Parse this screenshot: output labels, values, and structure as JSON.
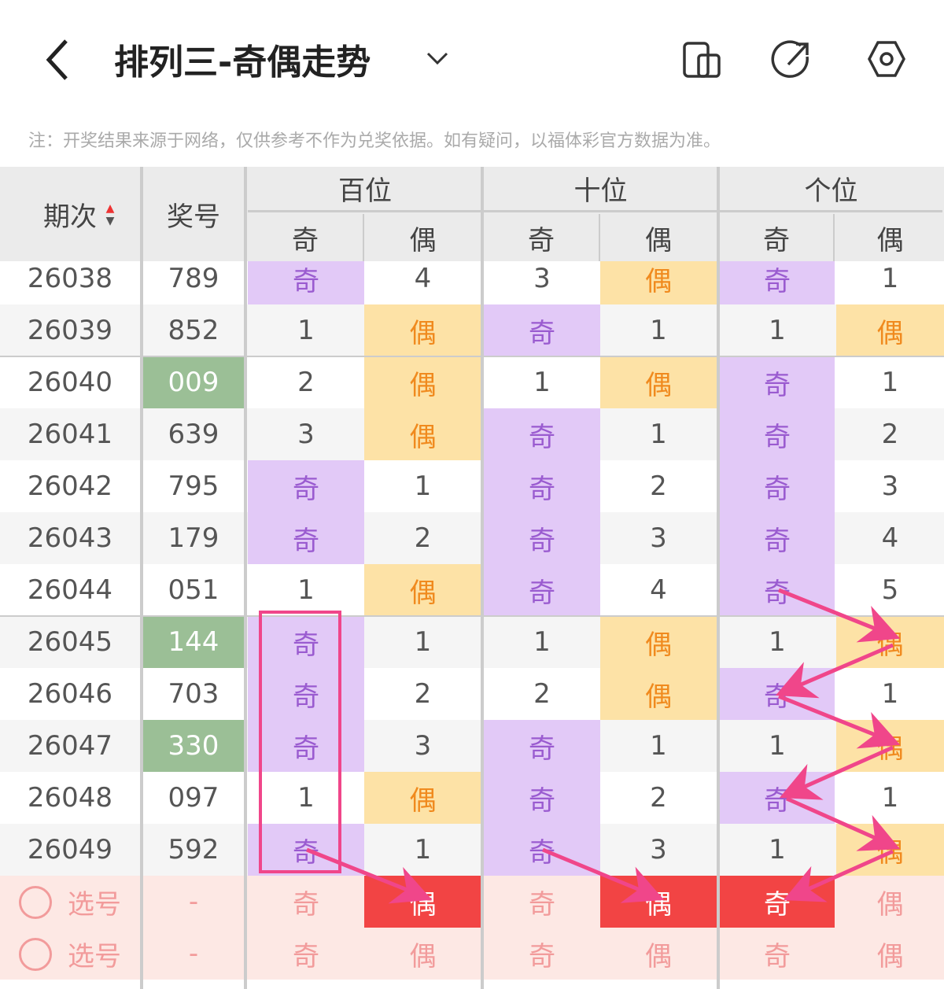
{
  "header": {
    "title": "排列三-奇偶走势"
  },
  "note": "注：开奖结果来源于网络，仅供参考不作为兑奖依据。如有疑问，以福体彩官方数据为准。",
  "table": {
    "columns": [
      "期次",
      "奖号"
    ],
    "groups": [
      "百位",
      "十位",
      "个位"
    ],
    "sub": [
      "奇",
      "偶",
      "奇",
      "偶",
      "奇",
      "偶"
    ],
    "rows": [
      {
        "issue": "26038",
        "number": "789",
        "cells": [
          "奇",
          "4",
          "3",
          "偶",
          "奇",
          "1"
        ]
      },
      {
        "issue": "26039",
        "number": "852",
        "cells": [
          "1",
          "偶",
          "奇",
          "1",
          "1",
          "偶"
        ]
      },
      {
        "issue": "26040",
        "number": "009",
        "number_highlight": true,
        "cells": [
          "2",
          "偶",
          "1",
          "偶",
          "奇",
          "1"
        ]
      },
      {
        "issue": "26041",
        "number": "639",
        "cells": [
          "3",
          "偶",
          "奇",
          "1",
          "奇",
          "2"
        ]
      },
      {
        "issue": "26042",
        "number": "795",
        "cells": [
          "奇",
          "1",
          "奇",
          "2",
          "奇",
          "3"
        ]
      },
      {
        "issue": "26043",
        "number": "179",
        "cells": [
          "奇",
          "2",
          "奇",
          "3",
          "奇",
          "4"
        ]
      },
      {
        "issue": "26044",
        "number": "051",
        "cells": [
          "1",
          "偶",
          "奇",
          "4",
          "奇",
          "5"
        ]
      },
      {
        "issue": "26045",
        "number": "144",
        "number_highlight": true,
        "cells": [
          "奇",
          "1",
          "1",
          "偶",
          "1",
          "偶"
        ]
      },
      {
        "issue": "26046",
        "number": "703",
        "cells": [
          "奇",
          "2",
          "2",
          "偶",
          "奇",
          "1"
        ]
      },
      {
        "issue": "26047",
        "number": "330",
        "number_highlight": true,
        "cells": [
          "奇",
          "3",
          "奇",
          "1",
          "1",
          "偶"
        ]
      },
      {
        "issue": "26048",
        "number": "097",
        "cells": [
          "1",
          "偶",
          "奇",
          "2",
          "奇",
          "1"
        ]
      },
      {
        "issue": "26049",
        "number": "592",
        "cells": [
          "奇",
          "1",
          "奇",
          "3",
          "1",
          "偶"
        ]
      }
    ],
    "select_rows": [
      {
        "label": "选号",
        "number": "-",
        "cells": [
          "奇",
          "偶",
          "奇",
          "偶",
          "奇",
          "偶"
        ],
        "selected": [
          1,
          3,
          4
        ]
      },
      {
        "label": "选号",
        "number": "-",
        "cells": [
          "奇",
          "偶",
          "奇",
          "偶",
          "奇",
          "偶"
        ],
        "selected": []
      }
    ]
  }
}
